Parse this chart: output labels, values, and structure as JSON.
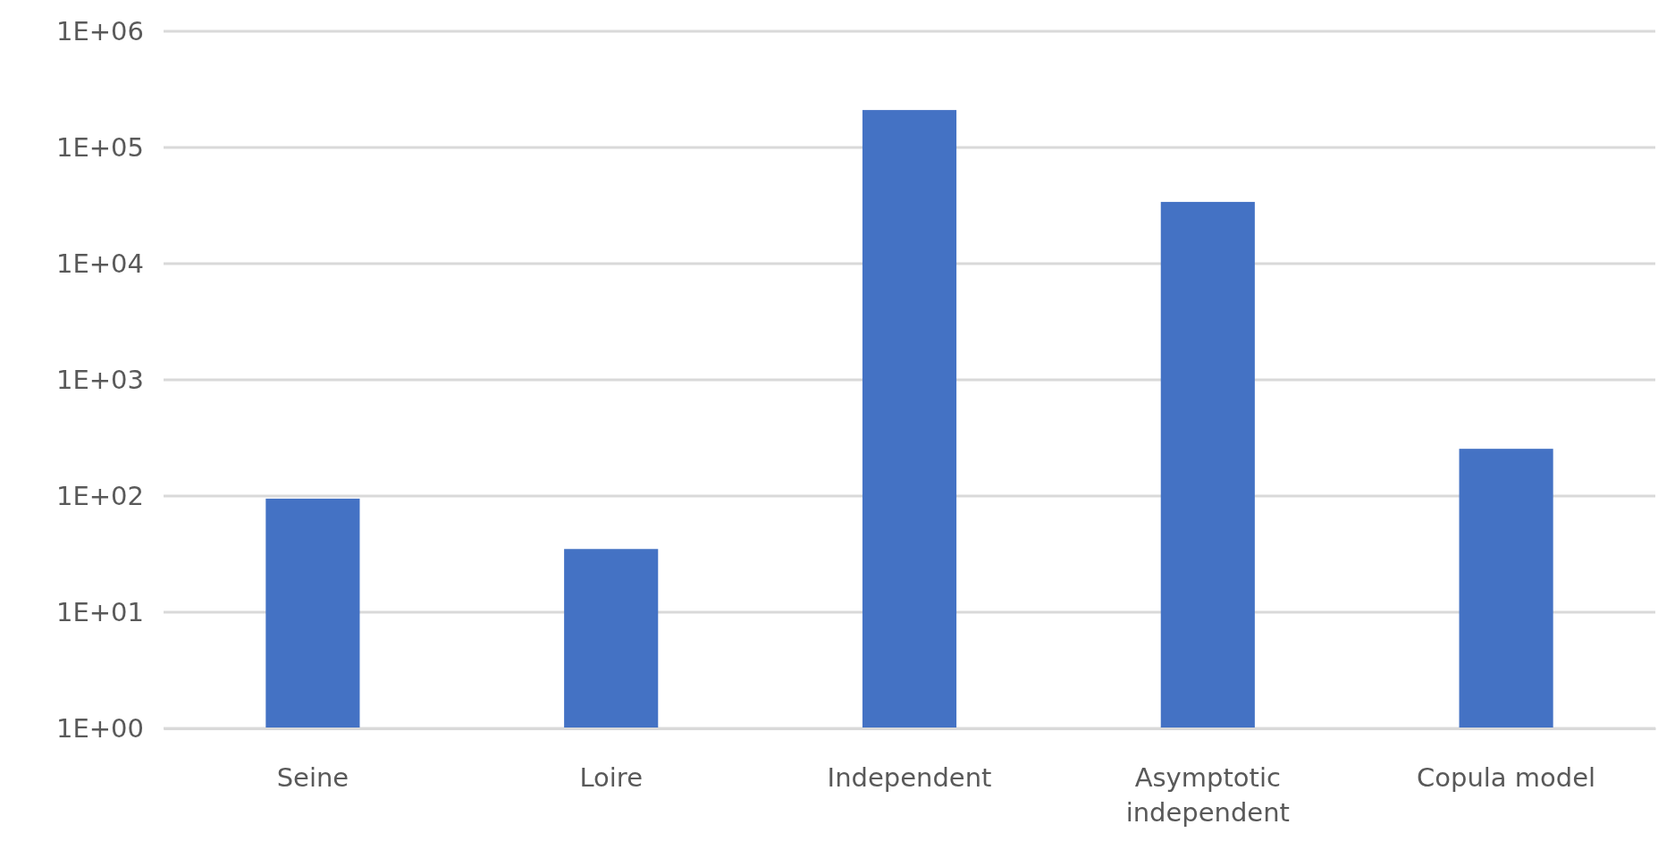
{
  "chart_data": {
    "type": "bar",
    "categories": [
      "Seine",
      "Loire",
      "Independent",
      "Asymptotic independent",
      "Copula model"
    ],
    "values": [
      95,
      35,
      210000,
      34000,
      255
    ],
    "color": "#4472c4",
    "log": true,
    "grid": "y",
    "ylim": [
      1,
      1000000
    ],
    "yticks": [
      {
        "value": 1,
        "label": "1E+00"
      },
      {
        "value": 10,
        "label": "1E+01"
      },
      {
        "value": 100,
        "label": "1E+02"
      },
      {
        "value": 1000,
        "label": "1E+03"
      },
      {
        "value": 10000,
        "label": "1E+04"
      },
      {
        "value": 100000,
        "label": "1E+05"
      },
      {
        "value": 1000000,
        "label": "1E+06"
      }
    ]
  }
}
